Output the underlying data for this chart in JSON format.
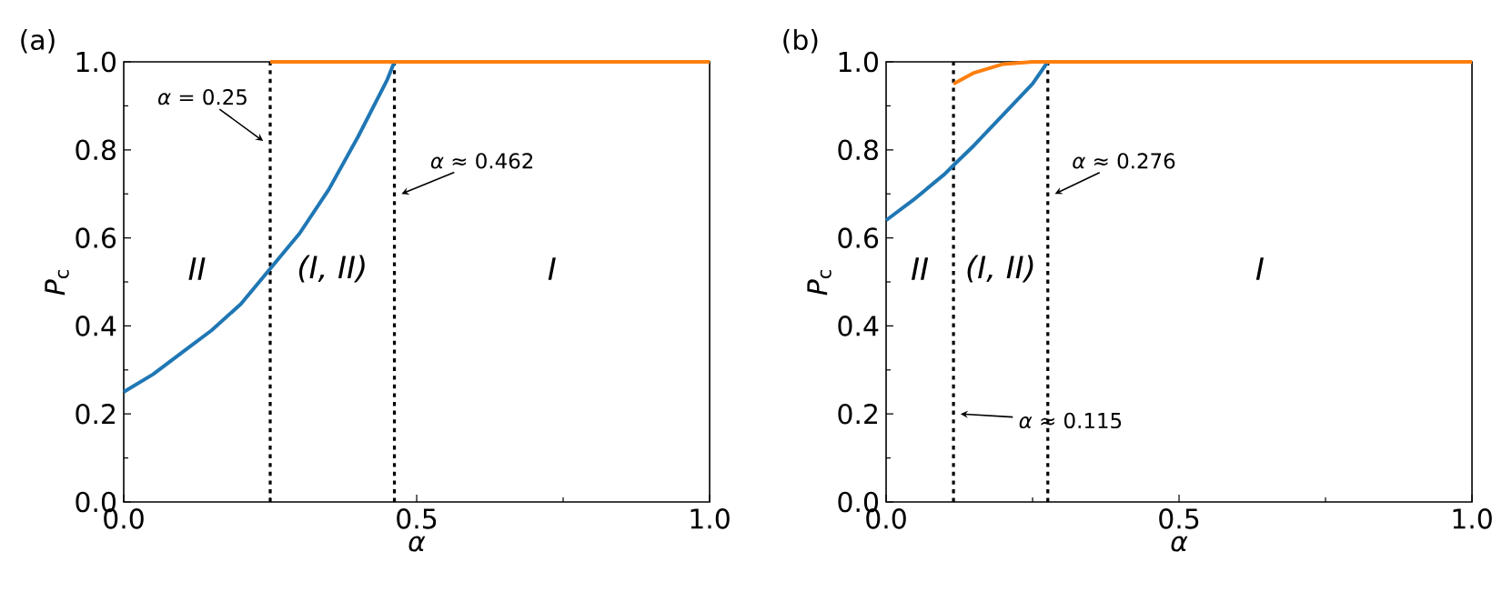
{
  "chart_data": [
    {
      "type": "line",
      "title": "(a)",
      "xlabel": "*α*",
      "ylabel": "*P*$_{c}$",
      "xlim": [
        0,
        1
      ],
      "ylim": [
        0,
        1
      ],
      "xticks": [
        {
          "value": 0,
          "label": "0.0"
        },
        {
          "value": 0.25,
          "label": null
        },
        0.5,
        {
          "value": 0.75,
          "label": null
        },
        {
          "value": 1,
          "label": "1.0"
        }
      ],
      "yticks": [
        {
          "value": 0,
          "label": "0.0"
        },
        {
          "value": 0.1,
          "label": null
        },
        0.2,
        {
          "value": 0.3,
          "label": null
        },
        0.4,
        {
          "value": 0.5,
          "label": null
        },
        0.6,
        {
          "value": 0.7,
          "label": null
        },
        0.8,
        {
          "value": 0.9,
          "label": null
        },
        {
          "value": 1,
          "label": "1.0"
        }
      ],
      "grid": false,
      "marker": "none",
      "line_style": "solid",
      "series": [
        {
          "color": "#1f77b4",
          "x": [
            0,
            0.05,
            0.1,
            0.15,
            0.2,
            0.25,
            0.3,
            0.35,
            0.4,
            0.45,
            0.462
          ],
          "values": [
            0.25,
            0.29,
            0.34,
            0.39,
            0.45,
            0.53,
            0.61,
            0.71,
            0.83,
            0.96,
            1.0
          ]
        },
        {
          "color": "#ff7f0e",
          "x": [
            0.25,
            1.0
          ],
          "values": [
            1.0,
            1.0
          ]
        }
      ],
      "ref_lines": [
        {
          "axis": "x",
          "value": 0.25,
          "color": "#000000",
          "line_style": "dotted"
        },
        {
          "axis": "x",
          "value": 0.462,
          "color": "#000000",
          "line_style": "dotted"
        }
      ],
      "annotations": [
        {
          "text": "*α* = 0.25",
          "x": 0.25,
          "y": 0.82
        },
        {
          "text": "*α* ≈ 0.462",
          "x": 0.462,
          "y": 0.7
        },
        "*II*",
        "*(I, II)*",
        "*I*"
      ]
    },
    {
      "type": "line",
      "title": "(b)",
      "xlabel": "*α*",
      "ylabel": "*P*$_{c}$",
      "xlim": [
        0,
        1
      ],
      "ylim": [
        0,
        1
      ],
      "xticks": [
        {
          "value": 0,
          "label": "0.0"
        },
        {
          "value": 0.25,
          "label": null
        },
        0.5,
        {
          "value": 0.75,
          "label": null
        },
        {
          "value": 1,
          "label": "1.0"
        }
      ],
      "yticks": [
        {
          "value": 0,
          "label": "0.0"
        },
        {
          "value": 0.1,
          "label": null
        },
        0.2,
        {
          "value": 0.3,
          "label": null
        },
        0.4,
        {
          "value": 0.5,
          "label": null
        },
        0.6,
        {
          "value": 0.7,
          "label": null
        },
        0.8,
        {
          "value": 0.9,
          "label": null
        },
        {
          "value": 1,
          "label": "1.0"
        }
      ],
      "grid": false,
      "marker": "none",
      "line_style": "solid",
      "series": [
        {
          "color": "#1f77b4",
          "x": [
            0,
            0.05,
            0.1,
            0.115,
            0.15,
            0.2,
            0.25,
            0.276
          ],
          "values": [
            0.64,
            0.69,
            0.745,
            0.765,
            0.81,
            0.88,
            0.95,
            1.0
          ]
        },
        {
          "color": "#ff7f0e",
          "x": [
            0.115,
            0.15,
            0.2,
            0.25,
            1.0
          ],
          "values": [
            0.95,
            0.975,
            0.995,
            1.0,
            1.0
          ]
        }
      ],
      "ref_lines": [
        {
          "axis": "x",
          "value": 0.115,
          "color": "#000000",
          "line_style": "dotted"
        },
        {
          "axis": "x",
          "value": 0.276,
          "color": "#000000",
          "line_style": "dotted"
        }
      ],
      "annotations": [
        {
          "text": "*α* ≈ 0.276",
          "x": 0.276,
          "y": 0.7
        },
        {
          "text": "*α* ≈ 0.115",
          "x": 0.115,
          "y": 0.2
        },
        "*II*",
        "*(I, II)*",
        "*I*"
      ]
    }
  ]
}
